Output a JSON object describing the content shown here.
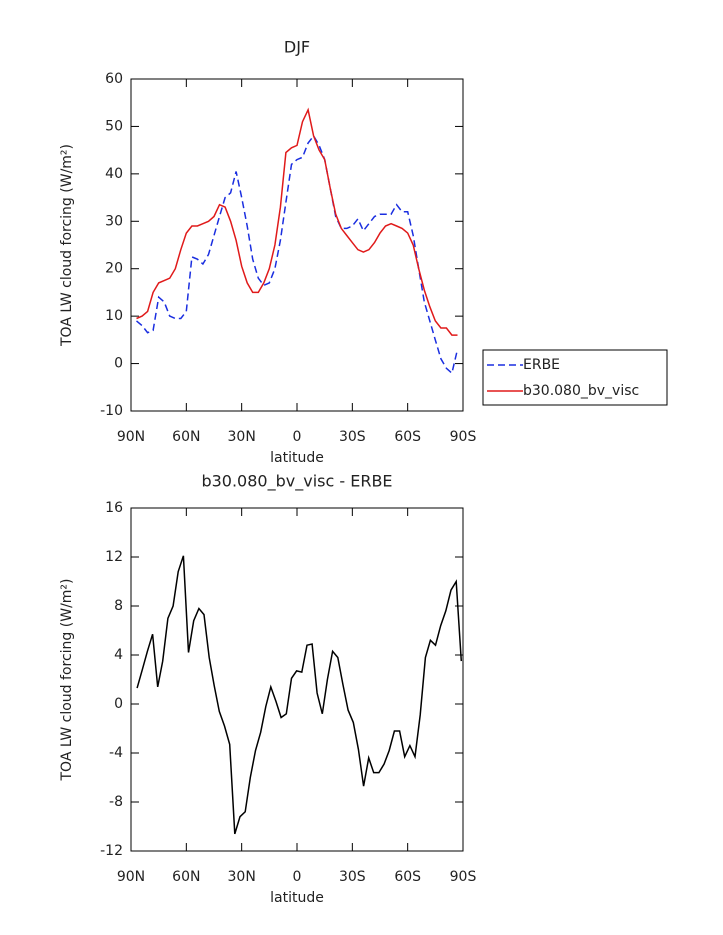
{
  "chart_data": [
    {
      "type": "line",
      "title": "DJF",
      "xlabel": "latitude",
      "ylabel": "TOA LW cloud forcing (W/m²)",
      "xlim": [
        90,
        -90
      ],
      "ylim": [
        -10,
        60
      ],
      "xticks": [
        {
          "value": 90,
          "label": "90N"
        },
        {
          "value": 60,
          "label": "60N"
        },
        {
          "value": 30,
          "label": "30N"
        },
        0,
        {
          "value": -30,
          "label": "30S"
        },
        {
          "value": -60,
          "label": "60S"
        },
        {
          "value": -90,
          "label": "90S"
        }
      ],
      "yticks": [
        -10,
        0,
        10,
        20,
        30,
        40,
        50,
        60
      ],
      "legend": "right",
      "x": [
        87,
        84,
        81,
        78,
        75,
        72,
        69,
        66,
        63,
        60,
        57,
        54,
        51,
        48,
        45,
        42,
        39,
        36,
        33,
        30,
        27,
        24,
        21,
        18,
        15,
        12,
        9,
        6,
        3,
        0,
        -3,
        -6,
        -9,
        -12,
        -15,
        -18,
        -21,
        -24,
        -27,
        -30,
        -33,
        -36,
        -39,
        -42,
        -45,
        -48,
        -51,
        -54,
        -57,
        -60,
        -63,
        -66,
        -69,
        -72,
        -75,
        -78,
        -81,
        -84,
        -87
      ],
      "series": [
        {
          "name": "ERBE",
          "color": "#1a2ee0",
          "dash": true,
          "values": [
            9,
            8,
            6.5,
            7,
            14,
            13,
            10,
            9.5,
            9.5,
            11,
            22.5,
            22,
            21,
            23,
            27,
            31,
            35,
            36,
            40.5,
            35,
            29,
            22,
            18,
            16.5,
            17,
            20,
            26,
            34,
            42,
            43,
            43.5,
            46.5,
            48,
            46,
            43,
            37,
            31,
            28.5,
            28.5,
            29,
            30.5,
            28,
            29.5,
            31,
            31.5,
            31.5,
            31.5,
            33.5,
            32,
            32,
            27,
            20,
            13,
            9,
            5,
            1,
            -1,
            -2,
            3
          ]
        },
        {
          "name": "b30.080_bv_visc",
          "color": "#e01a1a",
          "dash": false,
          "values": [
            9.5,
            10,
            11,
            15,
            17,
            17.5,
            18,
            20,
            24,
            27.5,
            29,
            29,
            29.5,
            30,
            31,
            33.5,
            33,
            30,
            26,
            20.5,
            17,
            15,
            15,
            17,
            20,
            25,
            33,
            44.5,
            45.5,
            46,
            51,
            53.5,
            48,
            45,
            43,
            37,
            31.5,
            28.5,
            27,
            25.5,
            24,
            23.5,
            24,
            25.5,
            27.5,
            29,
            29.5,
            29,
            28.5,
            27.5,
            25,
            20,
            15.5,
            12,
            9,
            7.5,
            7.5,
            6,
            6
          ]
        }
      ]
    },
    {
      "type": "line",
      "title": "b30.080_bv_visc - ERBE",
      "xlabel": "latitude",
      "ylabel": "TOA LW cloud forcing (W/m²)",
      "xlim": [
        90,
        -90
      ],
      "ylim": [
        -12,
        16
      ],
      "xticks": [
        {
          "value": 90,
          "label": "90N"
        },
        {
          "value": 60,
          "label": "60N"
        },
        {
          "value": 30,
          "label": "30N"
        },
        0,
        {
          "value": -30,
          "label": "30S"
        },
        {
          "value": -60,
          "label": "60S"
        },
        {
          "value": -90,
          "label": "90S"
        }
      ],
      "yticks": [
        -12,
        -8,
        -4,
        0,
        4,
        8,
        12,
        16
      ],
      "x": [
        86.7,
        83.9,
        81.1,
        78.3,
        75.5,
        72.8,
        70.0,
        67.2,
        64.4,
        61.6,
        58.8,
        56.0,
        53.2,
        50.4,
        47.6,
        44.9,
        42.1,
        39.3,
        36.5,
        33.7,
        30.9,
        28.1,
        25.3,
        22.5,
        19.7,
        16.9,
        14.2,
        11.4,
        8.6,
        5.8,
        3.0,
        0.2,
        -2.6,
        -5.4,
        -8.2,
        -10.9,
        -13.7,
        -16.5,
        -19.3,
        -22.1,
        -24.9,
        -27.7,
        -30.5,
        -33.3,
        -36.1,
        -38.9,
        -41.6,
        -44.4,
        -47.2,
        -50.0,
        -52.8,
        -55.6,
        -58.4,
        -61.2,
        -64.0,
        -66.8,
        -69.6,
        -72.3,
        -75.1,
        -77.9,
        -80.7,
        -83.5,
        -86.3,
        -89.1
      ],
      "series": [
        {
          "color": "#000000",
          "dash": false,
          "values": [
            1.3,
            2.8,
            4.3,
            5.7,
            1.4,
            3.5,
            7,
            8,
            10.8,
            12.1,
            4.2,
            6.8,
            7.8,
            7.3,
            3.8,
            1.5,
            -0.6,
            -1.8,
            -3.3,
            -10.6,
            -9.2,
            -8.8,
            -6,
            -3.8,
            -2.3,
            -0.2,
            1.4,
            0.2,
            -1.1,
            -0.8,
            2.1,
            2.7,
            2.6,
            4.8,
            4.9,
            0.9,
            -0.8,
            2,
            4.3,
            3.8,
            1.6,
            -0.5,
            -1.5,
            -3.7,
            -6.7,
            -4.4,
            -5.6,
            -5.6,
            -4.9,
            -3.8,
            -2.2,
            -2.2,
            -4.3,
            -3.4,
            -4.3,
            -0.9,
            3.8,
            5.2,
            4.8,
            6.4,
            7.6,
            9.3,
            10,
            3.5
          ]
        }
      ]
    }
  ]
}
